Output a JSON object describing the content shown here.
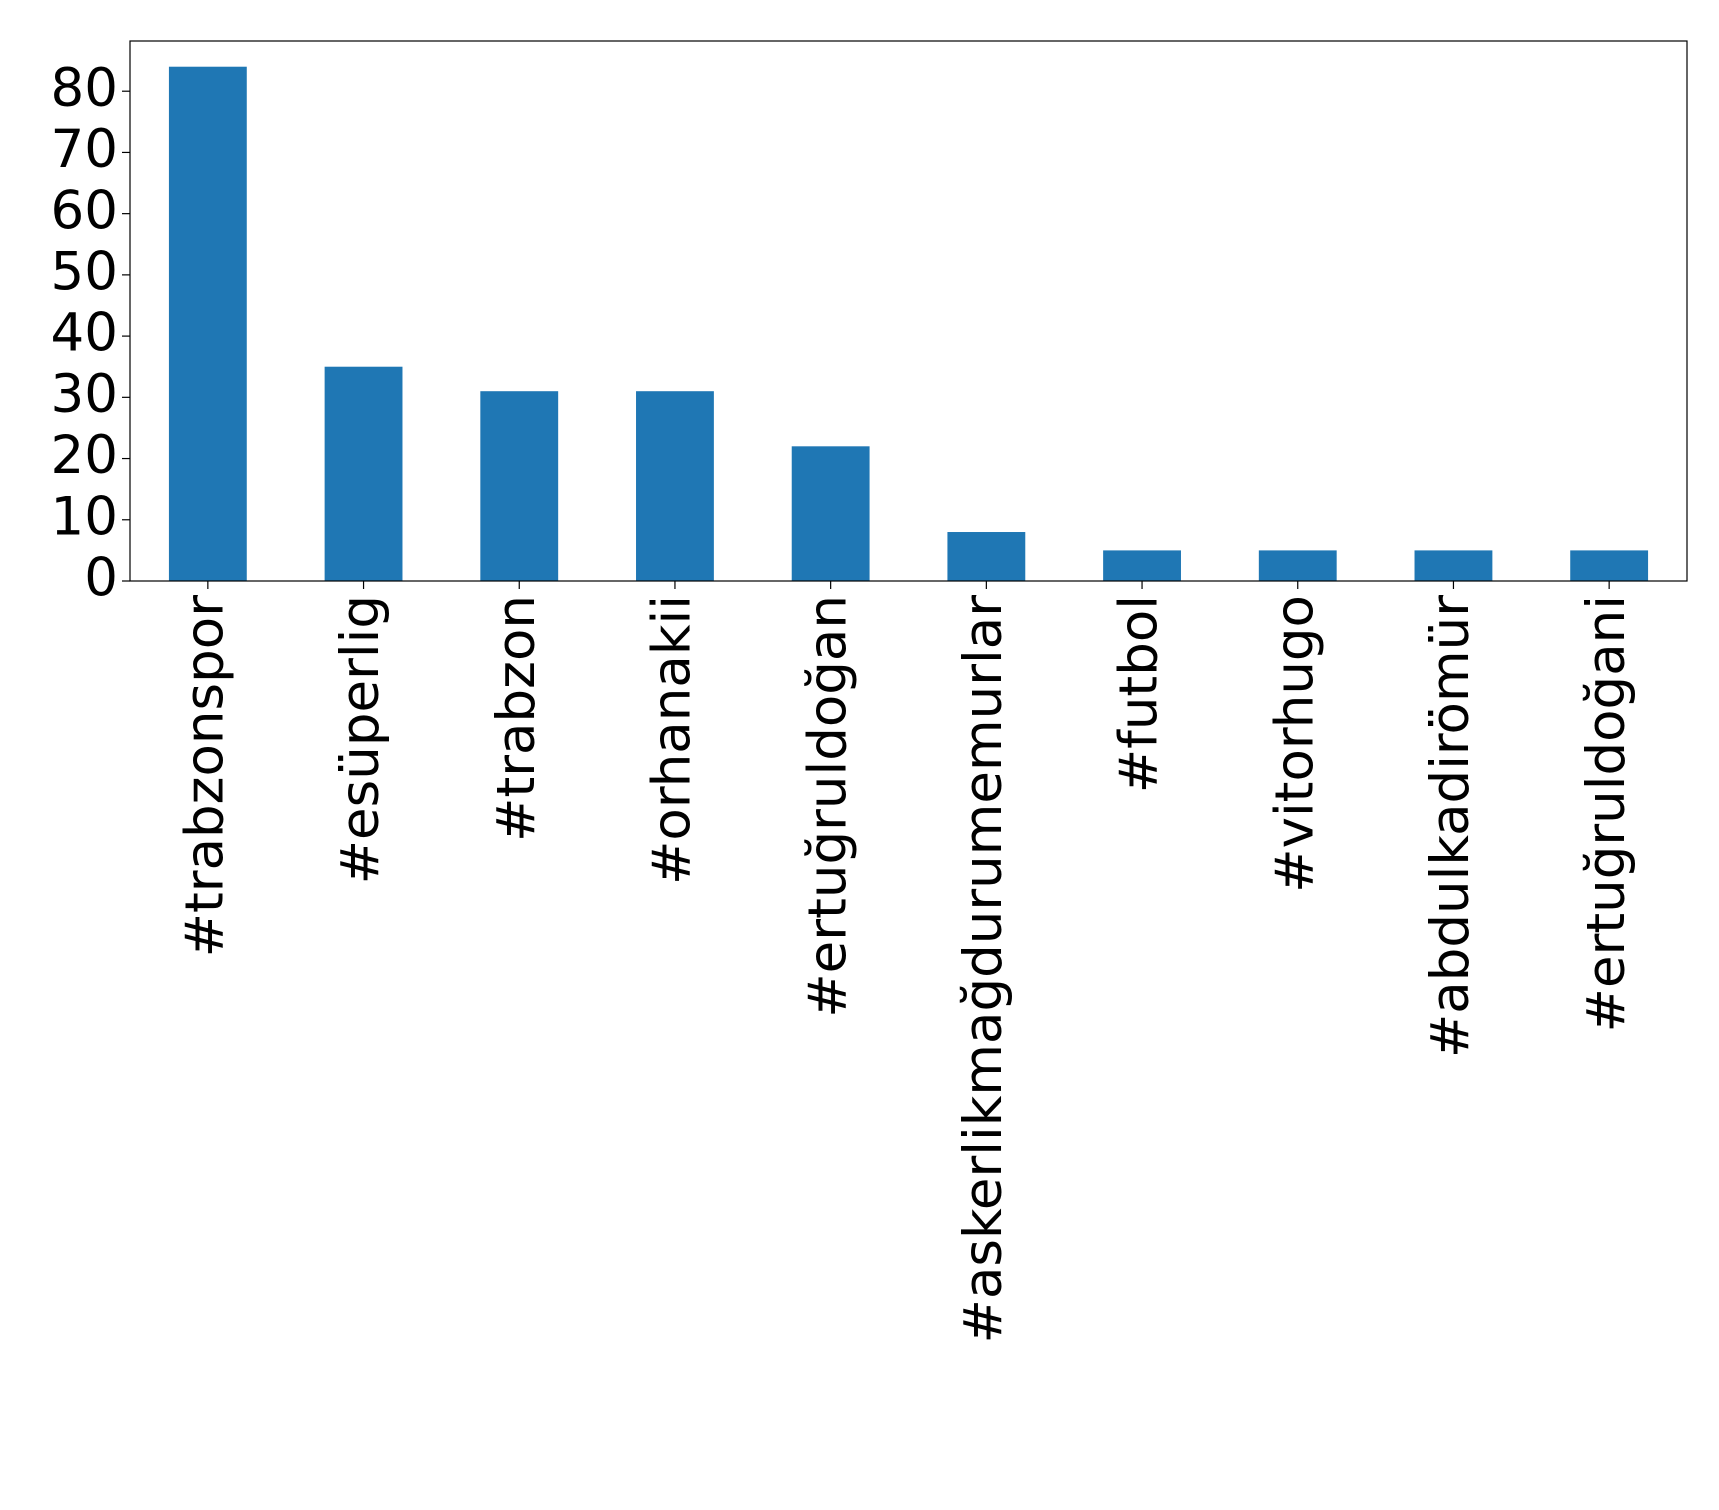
{
  "chart_data": {
    "type": "bar",
    "categories": [
      "#trabzonspor",
      "#esüperlig",
      "#trabzon",
      "#orhanakii",
      "#ertuğruldoğan",
      "#askerlikmağdurumemurlar",
      "#futbol",
      "#vitorhugo",
      "#abdulkadirömür",
      "#ertuğruldoğani"
    ],
    "values": [
      84,
      35,
      31,
      31,
      22,
      8,
      5,
      5,
      5,
      5
    ],
    "color": "#1f77b4",
    "ylim": [
      0,
      88.2
    ],
    "yticks": [
      0,
      10,
      20,
      30,
      40,
      50,
      60,
      70,
      80
    ],
    "grid": false
  }
}
